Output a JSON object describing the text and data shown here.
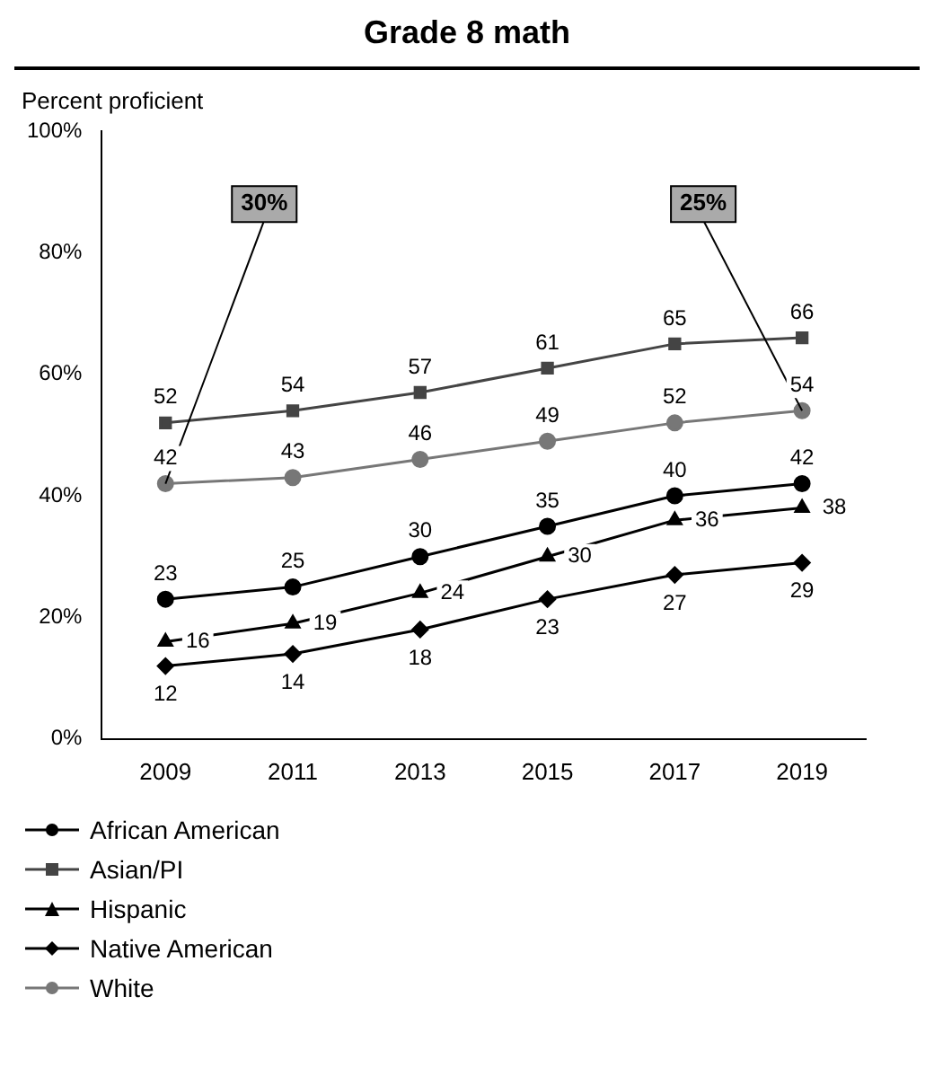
{
  "chart_data": {
    "type": "line",
    "title": "Grade 8 math",
    "ylabel": "Percent proficient",
    "categories": [
      "2009",
      "2011",
      "2013",
      "2015",
      "2017",
      "2019"
    ],
    "series": [
      {
        "name": "African American",
        "color": "#000000",
        "marker": "circle",
        "values": [
          23,
          25,
          30,
          35,
          40,
          42
        ]
      },
      {
        "name": "Asian/PI",
        "color": "#444444",
        "marker": "square",
        "values": [
          52,
          54,
          57,
          61,
          65,
          66
        ]
      },
      {
        "name": "Hispanic",
        "color": "#000000",
        "marker": "triangle",
        "values": [
          16,
          19,
          24,
          30,
          36,
          38
        ]
      },
      {
        "name": "Native American",
        "color": "#000000",
        "marker": "diamond",
        "values": [
          12,
          14,
          18,
          23,
          27,
          29
        ]
      },
      {
        "name": "White",
        "color": "#777777",
        "marker": "circle",
        "values": [
          42,
          43,
          46,
          49,
          52,
          54
        ]
      }
    ],
    "ylim": [
      0,
      100
    ],
    "yticks": [
      {
        "value": 0,
        "label": "0%"
      },
      {
        "value": 20,
        "label": "20%"
      },
      {
        "value": 40,
        "label": "40%"
      },
      {
        "value": 60,
        "label": "60%"
      },
      {
        "value": 80,
        "label": "80%"
      },
      {
        "value": 100,
        "label": "100%"
      }
    ],
    "annotations": [
      {
        "text": "30%",
        "x": "2009",
        "y": 42
      },
      {
        "text": "25%",
        "x": "2019",
        "y": 54
      }
    ],
    "data_labels": true,
    "grid": false,
    "legend": "bottom",
    "line_style": "solid"
  }
}
